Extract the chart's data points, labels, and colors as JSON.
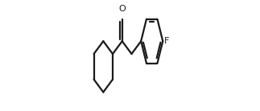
{
  "bg_color": "#ffffff",
  "line_color": "#1a1a1a",
  "line_width": 1.6,
  "text_color": "#1a1a1a",
  "O_label": "O",
  "F_label": "F",
  "figsize": [
    3.23,
    1.38
  ],
  "dpi": 100,
  "xlim": [
    0.0,
    1.0
  ],
  "ylim": [
    0.0,
    1.0
  ]
}
